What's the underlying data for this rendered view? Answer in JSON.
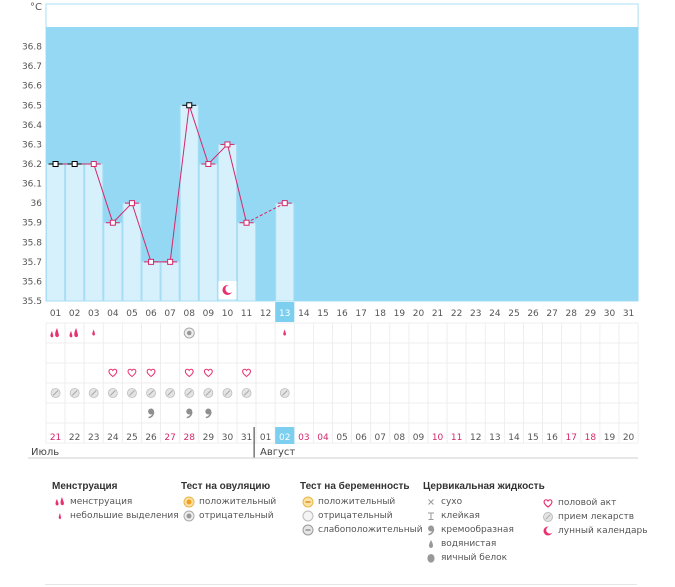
{
  "chart_data": {
    "type": "bar",
    "ylabel": "°C",
    "ylim": [
      35.5,
      36.9
    ],
    "yticks": [
      35.5,
      35.6,
      35.7,
      35.8,
      35.9,
      36,
      36.1,
      36.2,
      36.3,
      36.4,
      36.5,
      36.6,
      36.7,
      36.8
    ],
    "ytick_labels": [
      "35.5",
      "35.6",
      "35.7",
      "35.8",
      "35.9",
      "36",
      "36.1",
      "36.2",
      "36.3",
      "36.4",
      "36.5",
      "36.6",
      "36.7",
      "36.8"
    ],
    "cycle_days": [
      "01",
      "02",
      "03",
      "04",
      "05",
      "06",
      "07",
      "08",
      "09",
      "10",
      "11",
      "12",
      "13",
      "14",
      "15",
      "16",
      "17",
      "18",
      "19",
      "20",
      "21",
      "22",
      "23",
      "24",
      "25",
      "26",
      "27",
      "28",
      "29",
      "30",
      "31"
    ],
    "current_day_index": 12,
    "temperature": [
      36.2,
      36.2,
      36.2,
      35.9,
      36.0,
      35.7,
      35.7,
      36.5,
      36.2,
      36.3,
      35.9,
      null,
      36.0,
      null,
      null,
      null,
      null,
      null,
      null,
      null,
      null,
      null,
      null,
      null,
      null,
      null,
      null,
      null,
      null,
      null,
      null
    ],
    "highlighted_points": [
      0,
      1,
      7
    ],
    "dashed_gap_after_index": 10,
    "calendar_dates": [
      "21",
      "22",
      "23",
      "24",
      "25",
      "26",
      "27",
      "28",
      "29",
      "30",
      "31",
      "01",
      "02",
      "03",
      "04",
      "05",
      "06",
      "07",
      "08",
      "09",
      "10",
      "11",
      "12",
      "13",
      "14",
      "15",
      "16",
      "17",
      "18",
      "19",
      "20"
    ],
    "weekend_date_indices": [
      0,
      6,
      7,
      13,
      14,
      20,
      21,
      27,
      28
    ],
    "today_date_index": 12,
    "month_labels": [
      "Июль",
      "Август"
    ],
    "month_split_index": 11,
    "markers": {
      "menstruation": [
        0,
        1
      ],
      "light_spotting": [
        2,
        12
      ],
      "ovulation_negative": [
        7
      ],
      "intercourse": [
        3,
        4,
        5,
        7,
        8,
        10
      ],
      "medication": [
        0,
        1,
        2,
        3,
        4,
        5,
        6,
        7,
        8,
        9,
        10,
        12
      ],
      "creamy": [
        5,
        7,
        8
      ],
      "lunar_calendar": [
        9
      ]
    },
    "colors": {
      "background": "#94d8f3",
      "bar": "#d6f0fc",
      "bar_border": "#a9def5",
      "line": "#d4286a",
      "point_fill": "#ffffff",
      "highlight_point": "#000000",
      "today": "#7ccfef",
      "weekend_text": "#d4286a",
      "marker_pink": "#e8326f",
      "marker_gray": "#b9b9b9"
    }
  },
  "legend": {
    "menstruation": {
      "title": "Менструация",
      "items": [
        "менструация",
        "небольшие выделения"
      ]
    },
    "ovulation_test": {
      "title": "Тест на овуляцию",
      "items": [
        "положительный",
        "отрицательный"
      ]
    },
    "pregnancy_test": {
      "title": "Тест на беременность",
      "items": [
        "положительный",
        "отрицательный",
        "слабоположительный"
      ]
    },
    "cervical_fluid": {
      "title": "Цервикальная жидкость",
      "items": [
        "сухо",
        "клейкая",
        "кремообразная",
        "водянистая",
        "яичный белок"
      ]
    },
    "other": {
      "items": [
        "половой акт",
        "прием лекарств",
        "лунный календарь"
      ]
    }
  }
}
